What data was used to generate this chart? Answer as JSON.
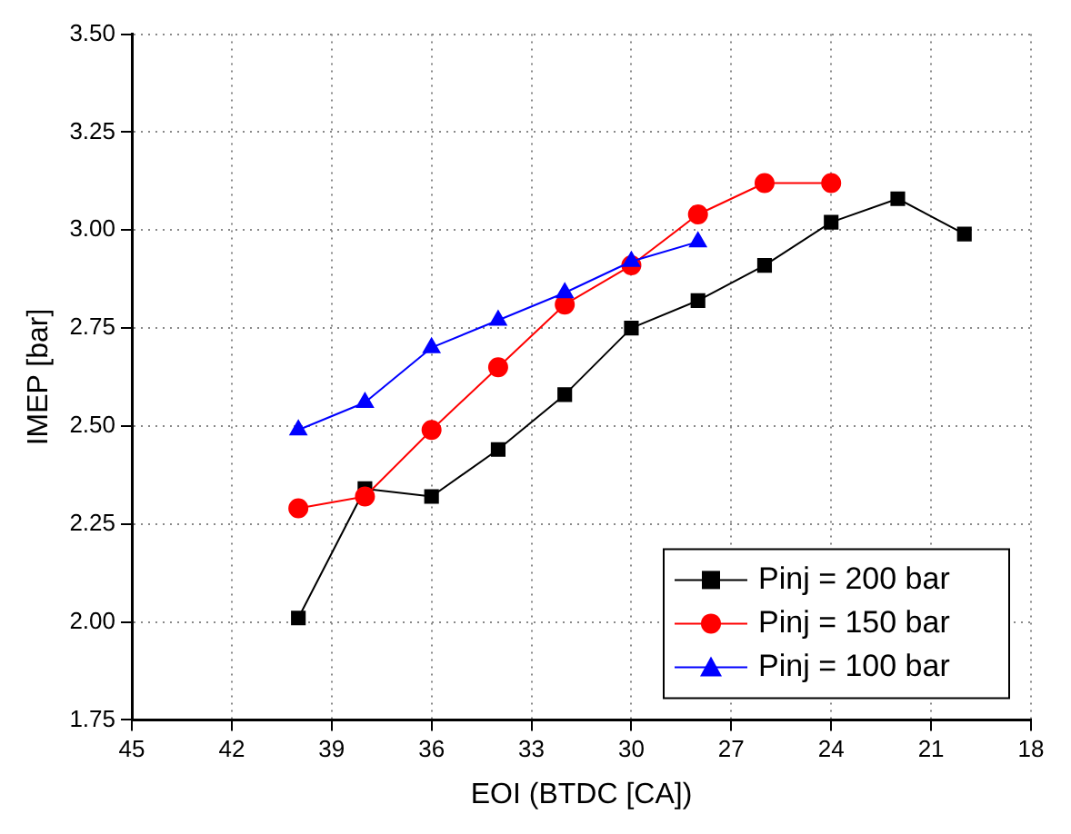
{
  "chart_data": {
    "type": "line",
    "xlabel": "EOI (BTDC [CA])",
    "ylabel": "IMEP [bar]",
    "xlim": [
      45,
      18
    ],
    "xticks": [
      45,
      42,
      39,
      36,
      33,
      30,
      27,
      24,
      21,
      18
    ],
    "ylim": [
      1.75,
      3.5
    ],
    "yticks": [
      {
        "value": 1.75,
        "label": "1.75"
      },
      {
        "value": 2,
        "label": "2.00"
      },
      {
        "value": 2.25,
        "label": "2.25"
      },
      {
        "value": 2.5,
        "label": "2.50"
      },
      {
        "value": 2.75,
        "label": "2.75"
      },
      {
        "value": 3,
        "label": "3.00"
      },
      {
        "value": 3.25,
        "label": "3.25"
      },
      {
        "value": 3.5,
        "label": "3.50"
      }
    ],
    "grid": true,
    "legend": "bottom right",
    "line_style": "solid",
    "series": [
      {
        "name": "Pinj = 200 bar",
        "color": "#000000",
        "marker": "square",
        "x": [
          40,
          38,
          36,
          34,
          32,
          30,
          28,
          26,
          24,
          22,
          20
        ],
        "values": [
          2.01,
          2.34,
          2.32,
          2.44,
          2.58,
          2.75,
          2.82,
          2.91,
          3.02,
          3.08,
          2.99
        ]
      },
      {
        "name": "Pinj = 150 bar",
        "color": "#ff0000",
        "marker": "circle",
        "x": [
          40,
          38,
          36,
          34,
          32,
          30,
          28,
          26,
          24
        ],
        "values": [
          2.29,
          2.32,
          2.49,
          2.65,
          2.81,
          2.91,
          3.04,
          3.12,
          3.12
        ]
      },
      {
        "name": "Pinj = 100 bar",
        "color": "#0000ff",
        "marker": "triangle",
        "x": [
          40,
          38,
          36,
          34,
          32,
          30,
          28
        ],
        "values": [
          2.49,
          2.56,
          2.7,
          2.77,
          2.84,
          2.92,
          2.97
        ]
      }
    ]
  }
}
